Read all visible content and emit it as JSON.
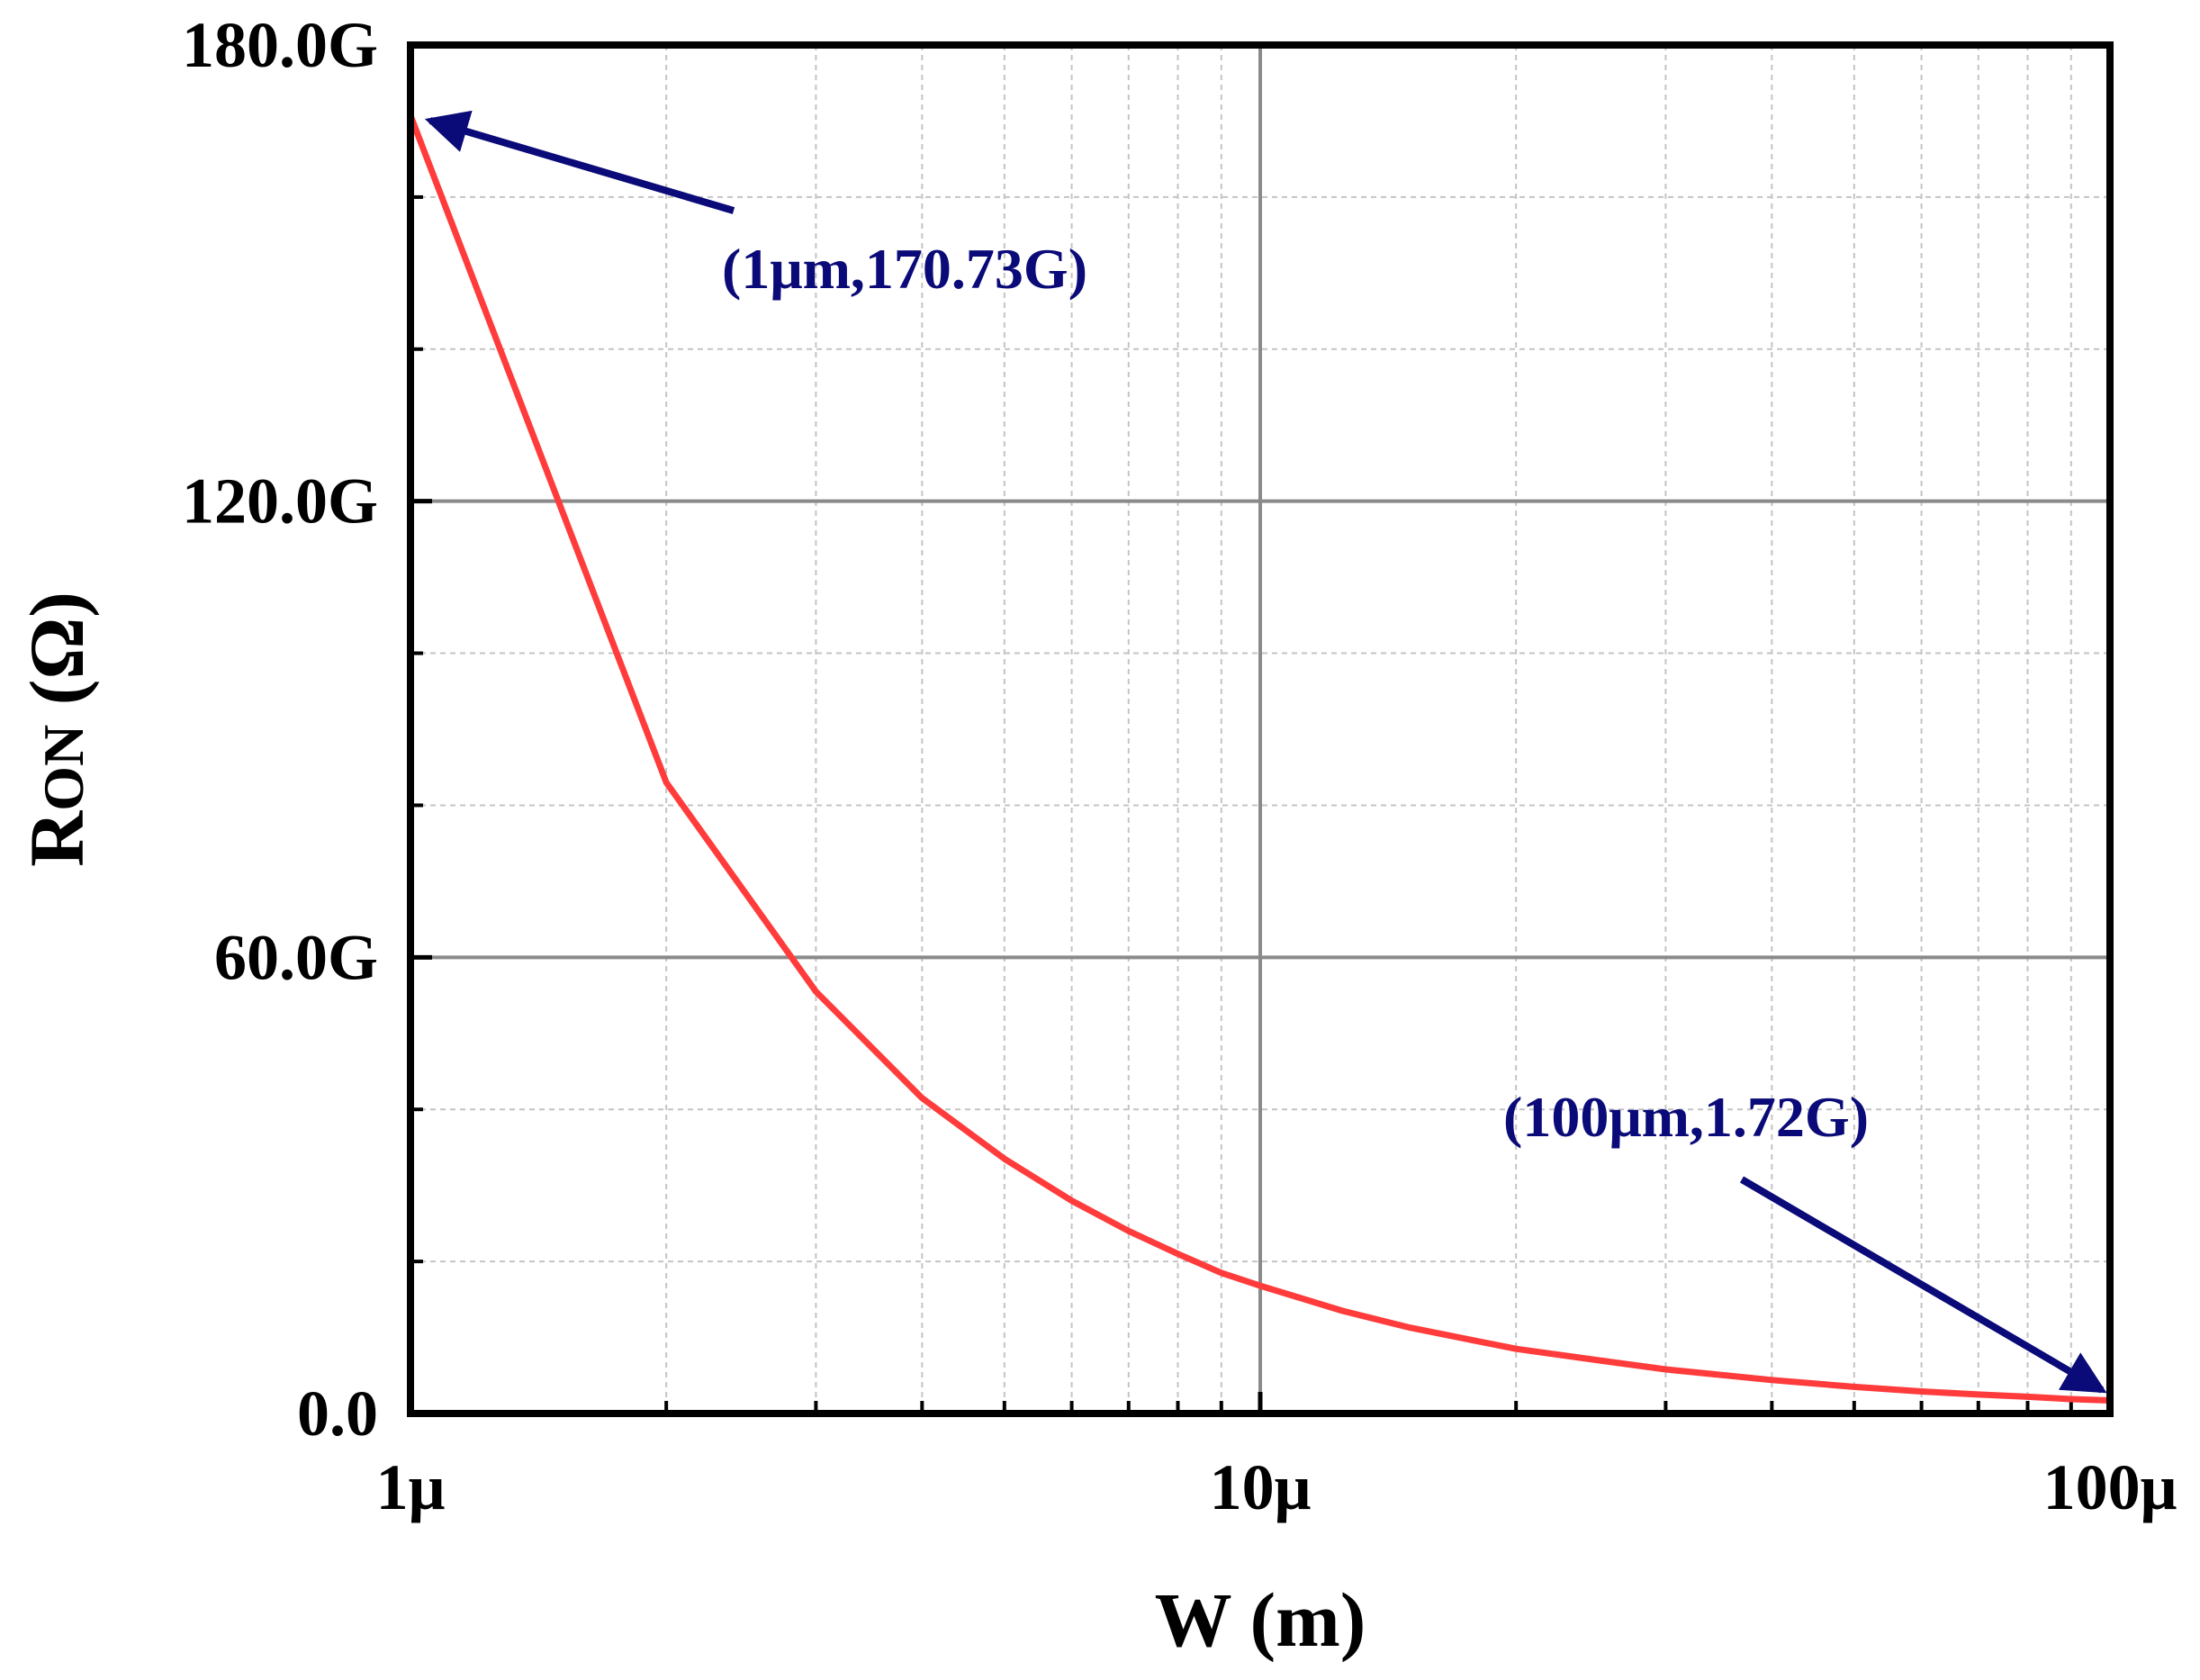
{
  "chart_data": {
    "type": "line",
    "xscale": "log",
    "xlim": [
      1e-06,
      0.0001
    ],
    "ylim": [
      0,
      180
    ],
    "y_unit_suffix": "G",
    "xlabel": "W (m)",
    "ylabel": {
      "main": "R",
      "subscript": "ON",
      "unit": " (Ω)"
    },
    "x_ticks": [
      {
        "value": 1e-06,
        "label": "1μ"
      },
      {
        "value": 1e-05,
        "label": "10μ"
      },
      {
        "value": 0.0001,
        "label": "100μ"
      }
    ],
    "y_ticks": [
      {
        "value": 0,
        "label": "0.0"
      },
      {
        "value": 60,
        "label": "60.0G"
      },
      {
        "value": 120,
        "label": "120.0G"
      },
      {
        "value": 180,
        "label": "180.0G"
      }
    ],
    "y_minor_ticks": [
      20,
      40,
      80,
      100,
      140,
      160
    ],
    "grid": true,
    "series": [
      {
        "name": "RON",
        "color": "#ff3b3b",
        "x": [
          1e-06,
          2e-06,
          3e-06,
          4e-06,
          5e-06,
          6e-06,
          7e-06,
          8e-06,
          9e-06,
          1e-05,
          1.25e-05,
          1.5e-05,
          2e-05,
          2.5e-05,
          3e-05,
          4e-05,
          5e-05,
          6e-05,
          7e-05,
          8e-05,
          9e-05,
          0.0001
        ],
        "y": [
          170.73,
          83.0,
          55.5,
          41.5,
          33.5,
          28.0,
          24.0,
          21.0,
          18.5,
          16.8,
          13.5,
          11.3,
          8.5,
          7.0,
          5.8,
          4.4,
          3.5,
          2.9,
          2.5,
          2.2,
          1.9,
          1.72
        ]
      }
    ],
    "annotations": [
      {
        "text": "(1μm,170.73G)",
        "point": [
          1e-06,
          170.73
        ],
        "color": "#0a0a78"
      },
      {
        "text": "(100μm,1.72G)",
        "point": [
          0.0001,
          1.72
        ],
        "color": "#0a0a78"
      }
    ]
  }
}
